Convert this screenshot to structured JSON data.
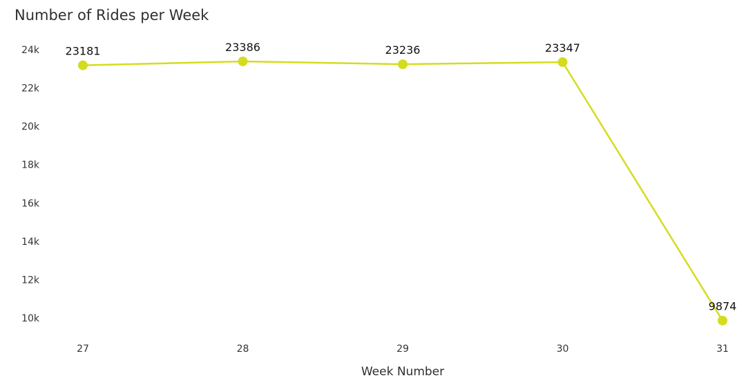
{
  "chart_data": {
    "type": "line",
    "title": "Number of Rides per Week",
    "xlabel": "Week Number",
    "ylabel": "",
    "x": [
      27,
      28,
      29,
      30,
      31
    ],
    "series": [
      {
        "values": [
          23181,
          23386,
          23236,
          23347,
          9874
        ],
        "color": "#d4dc1f"
      }
    ],
    "data_labels": [
      "23181",
      "23386",
      "23236",
      "23347",
      "9874"
    ],
    "y_ticks": [
      10000,
      12000,
      14000,
      16000,
      18000,
      20000,
      22000,
      24000
    ],
    "y_tick_labels": [
      "10k",
      "12k",
      "14k",
      "16k",
      "18k",
      "20k",
      "22k",
      "24k"
    ],
    "x_tick_labels": [
      "27",
      "28",
      "29",
      "30",
      "31"
    ],
    "ylim": [
      9000,
      24500
    ],
    "xlim": [
      27,
      31
    ],
    "grid": false,
    "legend": "none"
  }
}
